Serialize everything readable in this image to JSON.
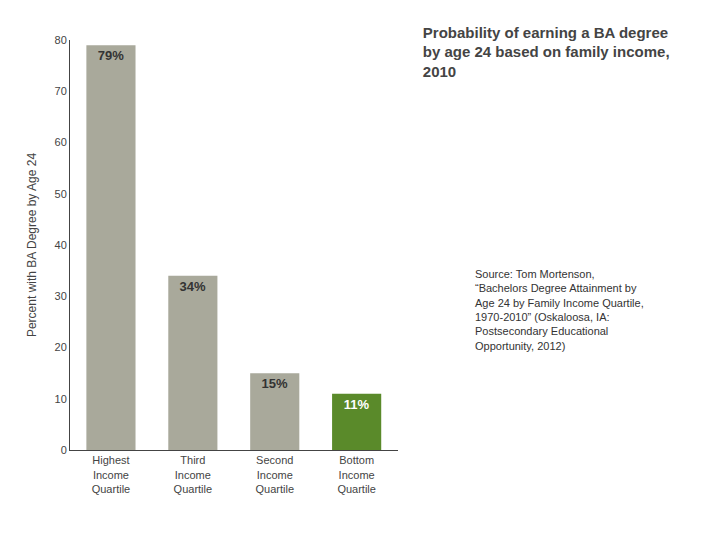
{
  "chart_data": {
    "type": "bar",
    "title": "Probability of earning a BA degree\nby age 24 based on family income,\n2010",
    "categories": [
      "Highest\nIncome\nQuartile",
      "Third\nIncome\nQuartile",
      "Second\nIncome\nQuartile",
      "Bottom\nIncome\nQuartile"
    ],
    "values": [
      79,
      34,
      15,
      11
    ],
    "value_labels": [
      "79%",
      "34%",
      "15%",
      "11%"
    ],
    "data_labels": true,
    "colors": [
      "#a9a99b",
      "#a9a99b",
      "#a9a99b",
      "#5a8a2a"
    ],
    "ylabel": "Percent with BA Degree by Age 24",
    "ylim": [
      0,
      80
    ],
    "yticks": [
      0,
      10,
      20,
      30,
      40,
      50,
      60,
      70,
      80
    ],
    "grid": false,
    "annotations": [
      "Source: Tom Mortenson,\n“Bachelors Degree Attainment by\nAge 24 by Family Income Quartile,\n1970-2010” (Oskaloosa, IA:\nPostsecondary Educational\nOpportunity, 2012)"
    ]
  }
}
